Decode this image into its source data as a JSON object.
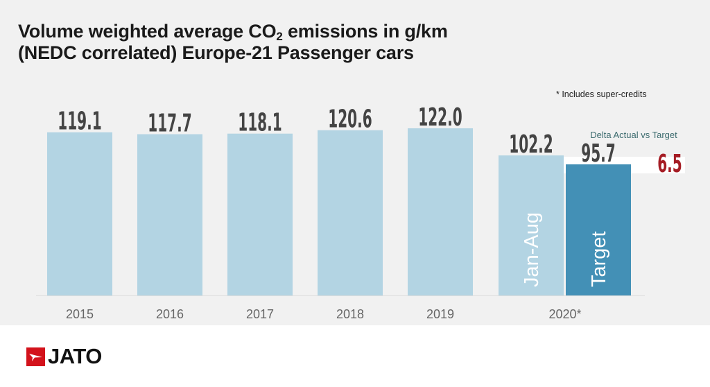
{
  "chart_data": {
    "type": "bar",
    "title": "Volume weighted average CO2 emissions in g/km (NEDC correlated) Europe-21 Passenger cars",
    "title_parts": {
      "line1_pre": "Volume weighted average CO",
      "line1_sub": "2",
      "line1_post": " emissions in g/km",
      "line2": "(NEDC correlated) Europe-21 Passenger cars"
    },
    "footnote": "* Includes super-credits",
    "xlabel": "",
    "ylabel": "",
    "ylim": [
      0,
      122
    ],
    "grid": false,
    "categories": [
      "2015",
      "2016",
      "2017",
      "2018",
      "2019",
      "2020*"
    ],
    "bars": [
      {
        "category": "2015",
        "label": "",
        "value": 119.1,
        "display": "119.1",
        "color": "#b3d4e3"
      },
      {
        "category": "2016",
        "label": "",
        "value": 117.7,
        "display": "117.7",
        "color": "#b3d4e3"
      },
      {
        "category": "2017",
        "label": "",
        "value": 118.1,
        "display": "118.1",
        "color": "#b3d4e3"
      },
      {
        "category": "2018",
        "label": "",
        "value": 120.6,
        "display": "120.6",
        "color": "#b3d4e3"
      },
      {
        "category": "2019",
        "label": "",
        "value": 122.0,
        "display": "122.0",
        "color": "#b3d4e3"
      },
      {
        "category": "2020*",
        "label": "Jan-Aug",
        "value": 102.2,
        "display": "102.2",
        "color": "#b3d4e3"
      },
      {
        "category": "2020*",
        "label": "Target",
        "value": 95.7,
        "display": "95.7",
        "color": "#4390b6"
      }
    ],
    "delta": {
      "label": "Delta Actual vs Target",
      "value": 6.5,
      "display": "6.5",
      "color": "#a51c24"
    }
  },
  "brand": {
    "name": "JATO",
    "accent": "#d3121b"
  }
}
